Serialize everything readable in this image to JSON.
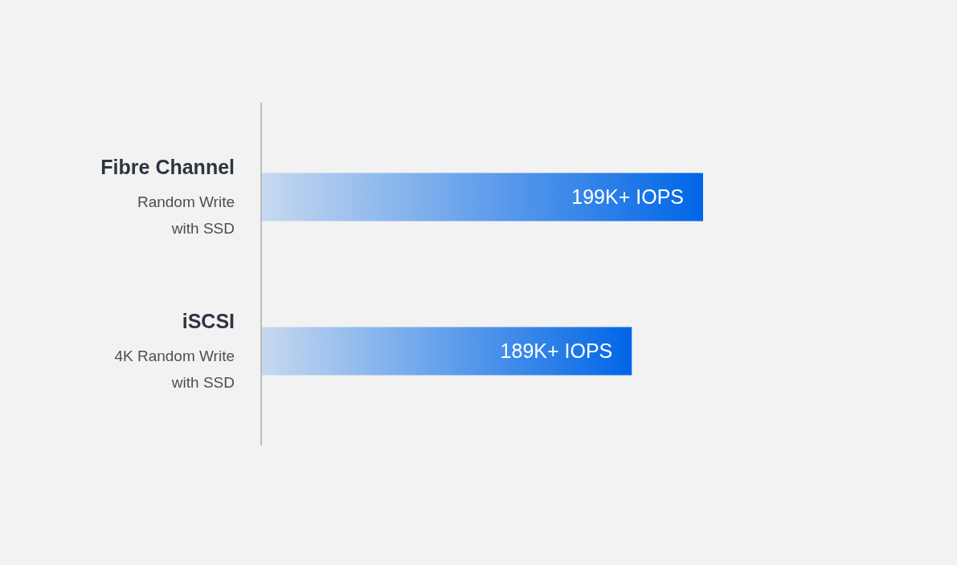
{
  "chart_data": {
    "type": "bar",
    "orientation": "horizontal",
    "xlim": [
      137,
      199
    ],
    "categories": [
      "Fibre Channel\nRandom Write\nwith SSD",
      "iSCSI\n4K Random Write\nwith SSD"
    ],
    "values": [
      199,
      189
    ],
    "value_labels": [
      "199K+ IOPS",
      "189K+ IOPS"
    ],
    "color": "#0066e6"
  }
}
